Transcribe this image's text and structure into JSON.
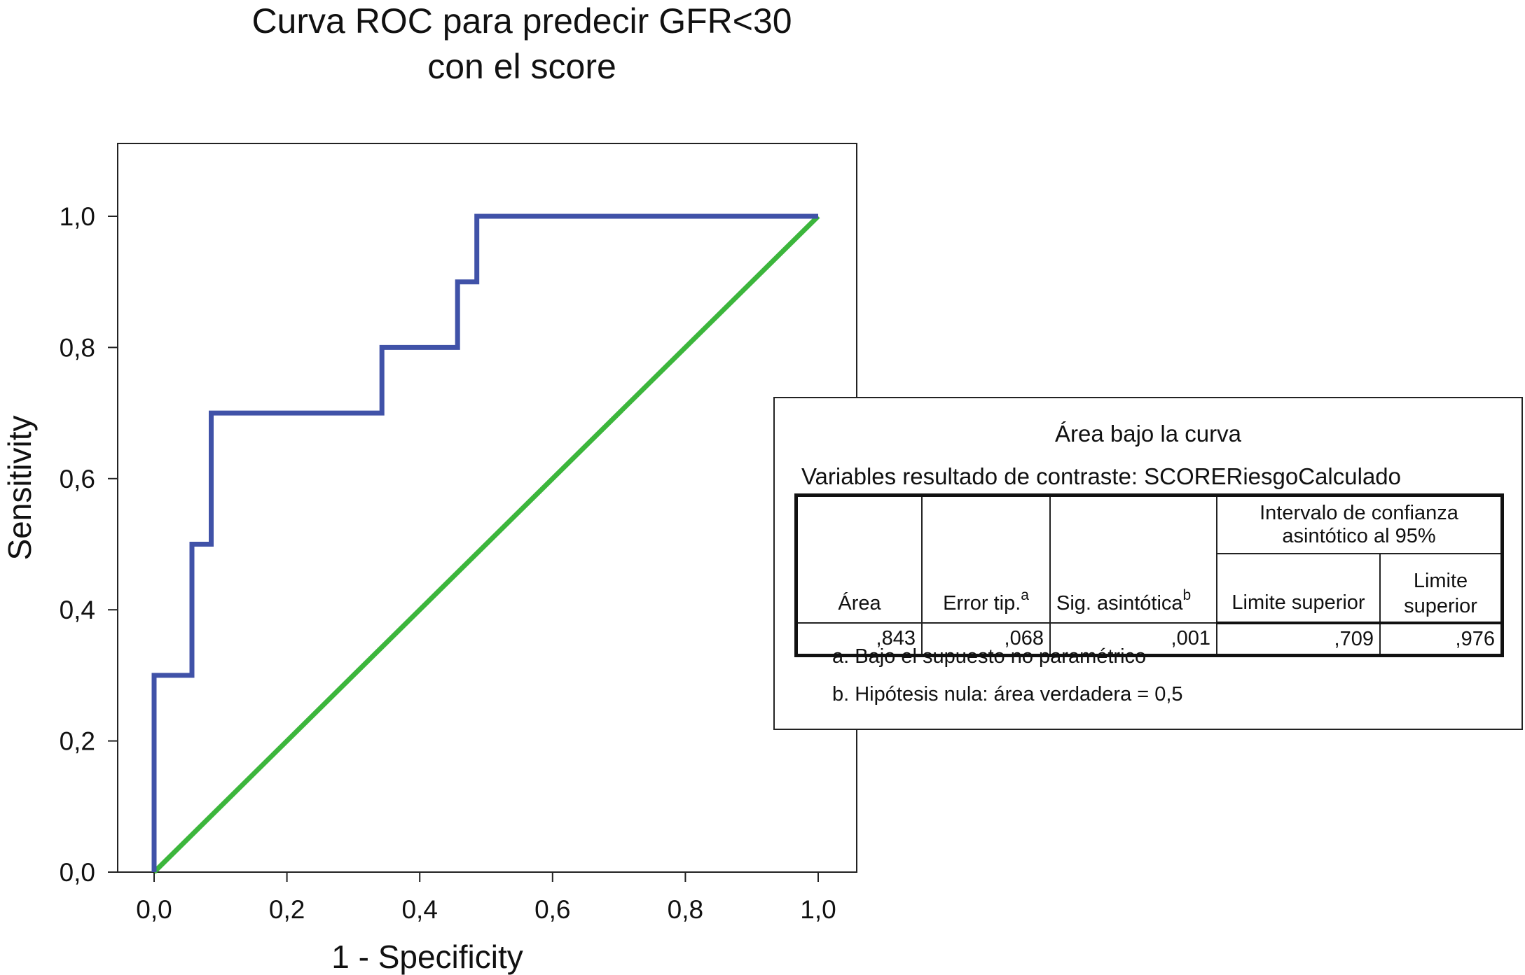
{
  "chart_data": {
    "type": "line",
    "title_lines": [
      "Curva ROC para predecir GFR<30",
      "con el score"
    ],
    "xlabel": "1 - Specificity",
    "ylabel": "Sensitivity",
    "xlim": [
      0.0,
      1.0
    ],
    "ylim": [
      0.0,
      1.0
    ],
    "x_ticks": [
      "0,0",
      "0,2",
      "0,4",
      "0,6",
      "0,8",
      "1,0"
    ],
    "y_ticks": [
      "0,0",
      "0,2",
      "0,4",
      "0,6",
      "0,8",
      "1,0"
    ],
    "grid": false,
    "series": [
      {
        "color": "#4052a8",
        "x": [
          0.0,
          0.0,
          0.057,
          0.057,
          0.086,
          0.086,
          0.343,
          0.343,
          0.457,
          0.457,
          0.486,
          0.486,
          1.0
        ],
        "y": [
          0.0,
          0.3,
          0.3,
          0.5,
          0.5,
          0.7,
          0.7,
          0.8,
          0.8,
          0.9,
          0.9,
          1.0,
          1.0
        ]
      },
      {
        "color": "#3cb63c",
        "x": [
          0.0,
          1.0
        ],
        "y": [
          0.0,
          1.0
        ]
      }
    ]
  },
  "auc_table": {
    "title": "Área bajo la curva",
    "variable_line": "Variables resultado de contraste: SCORERiesgoCalculado",
    "ci_header": "Intervalo de confianza asintótico al 95%",
    "col_area": "Área",
    "col_error": "Error tip.",
    "col_error_sup": "a",
    "col_sig": "Sig. asintótica",
    "col_sig_sup": "b",
    "col_lower": "Limite superior",
    "col_upper": "Limite superior",
    "values": {
      "area": ",843",
      "error": ",068",
      "sig": ",001",
      "lower": ",709",
      "upper": ",976"
    },
    "footnote_a": "a. Bajo el supuesto no paramétrico",
    "footnote_b": "b. Hipótesis nula: área verdadera = 0,5"
  }
}
